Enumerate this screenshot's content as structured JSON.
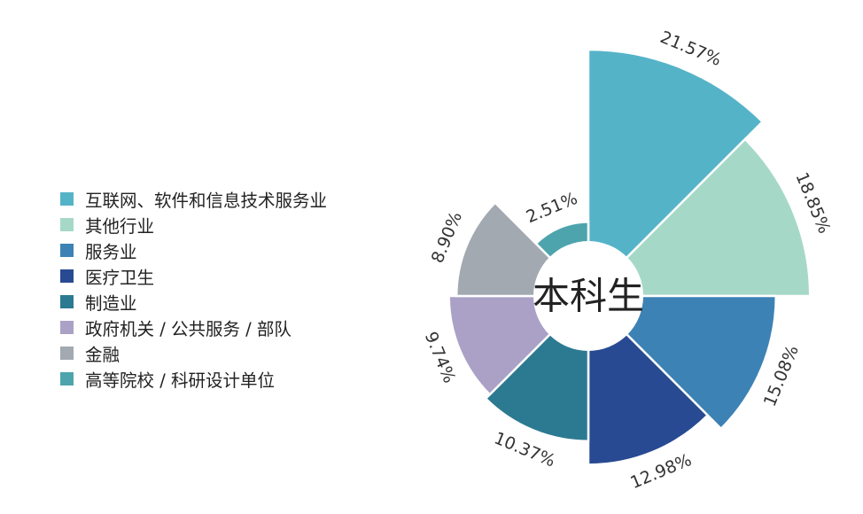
{
  "chart_data": {
    "type": "pie",
    "subtype": "nightingale-rose",
    "center_label": "本科生",
    "legend_position": "left",
    "categories": [
      "互联网、软件和信息技术服务业",
      "其他行业",
      "服务业",
      "医疗卫生",
      "制造业",
      "政府机关 / 公共服务 / 部队",
      "金融",
      "高等院校 / 科研设计单位"
    ],
    "values": [
      21.57,
      18.85,
      15.08,
      12.98,
      10.37,
      9.74,
      8.9,
      2.51
    ],
    "value_labels": [
      "21.57%",
      "18.85%",
      "15.08%",
      "12.98%",
      "10.37%",
      "9.74%",
      "8.90%",
      "2.51%"
    ],
    "colors": [
      "#55b3c8",
      "#a6d8c8",
      "#3d82b5",
      "#284a92",
      "#2c7a91",
      "#aba1c6",
      "#a3a9b1",
      "#4ea4ad"
    ]
  }
}
